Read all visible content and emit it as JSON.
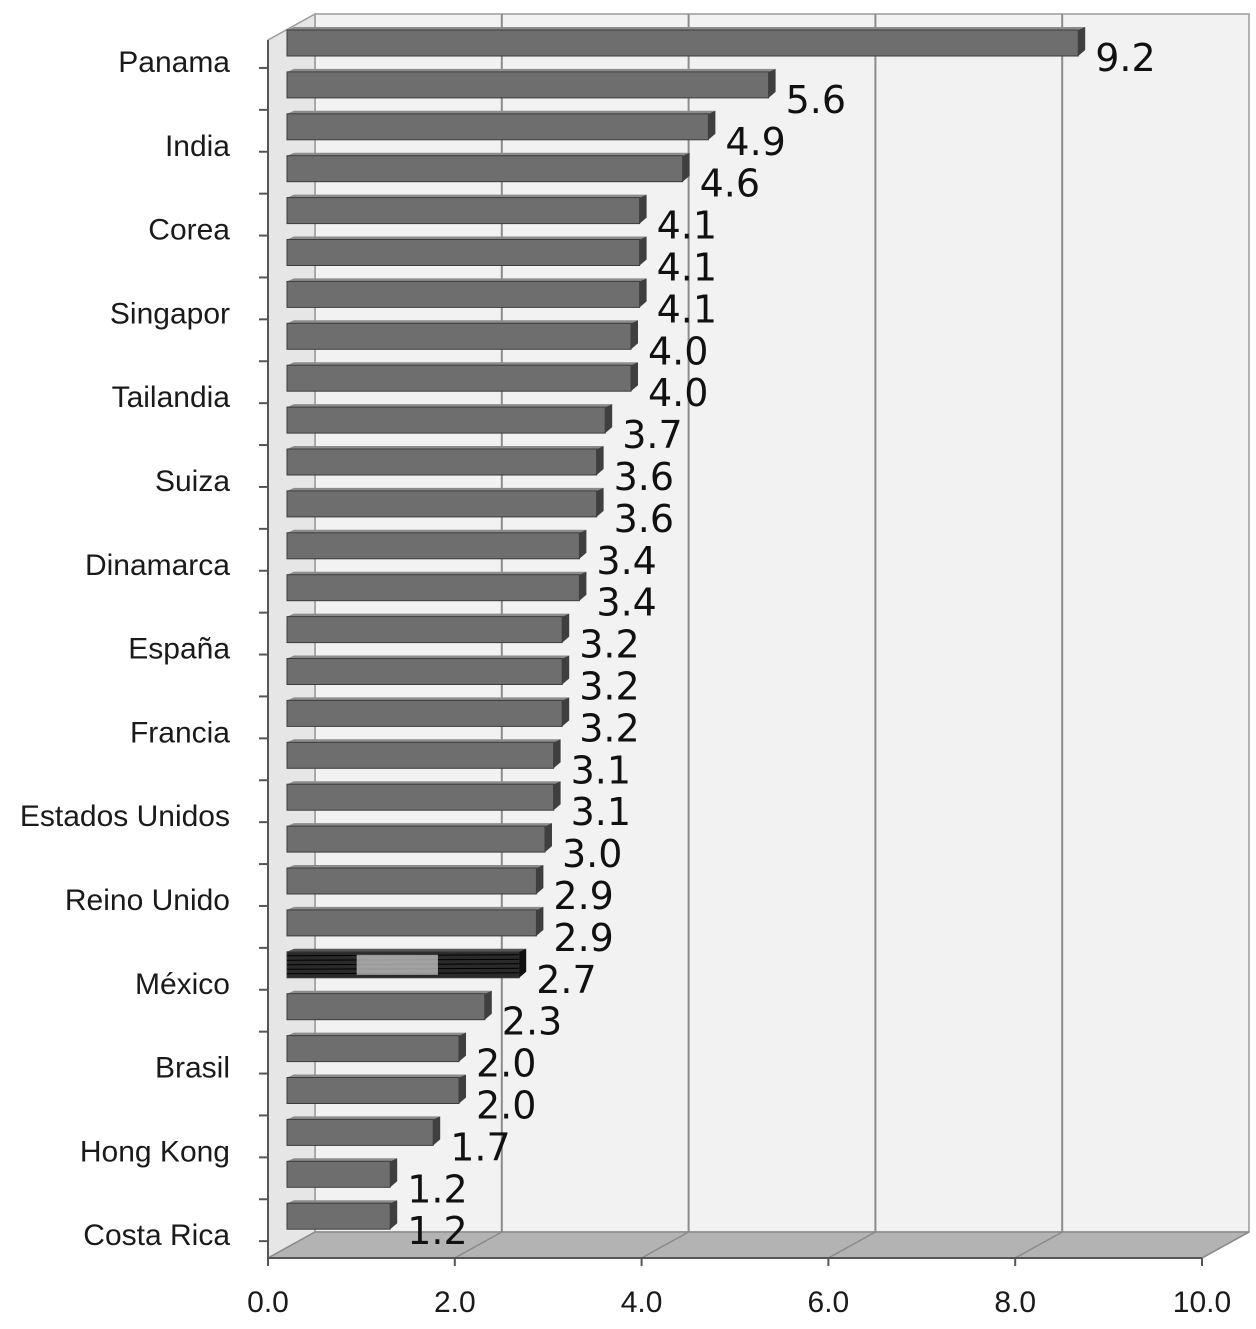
{
  "chart_data": {
    "type": "bar",
    "orientation": "horizontal",
    "title": "",
    "xlabel": "",
    "ylabel": "",
    "xlim": [
      0,
      10
    ],
    "x_ticks": [
      "0.0",
      "2.0",
      "4.0",
      "6.0",
      "8.0",
      "10.0"
    ],
    "grid": true,
    "categories": [
      "Panama",
      "",
      "India",
      "",
      "Corea",
      "",
      "Singapor",
      "",
      "Tailandia",
      "",
      "Suiza",
      "",
      "Dinamarca",
      "",
      "España",
      "",
      "Francia",
      "",
      "Estados Unidos",
      "",
      "Reino Unido",
      "",
      "México",
      "",
      "Brasil",
      "",
      "Hong Kong",
      "",
      "Costa Rica"
    ],
    "values": [
      9.2,
      5.6,
      4.9,
      4.6,
      4.1,
      4.1,
      4.1,
      4.0,
      4.0,
      3.7,
      3.6,
      3.6,
      3.4,
      3.4,
      3.2,
      3.2,
      3.2,
      3.1,
      3.1,
      3.0,
      2.9,
      2.9,
      2.7,
      2.3,
      2.0,
      2.0,
      1.7,
      1.2,
      1.2
    ],
    "value_labels": [
      "9.2",
      "5.6",
      "4.9",
      "4.6",
      "4.1",
      "4.1",
      "4.1",
      "4.0",
      "4.0",
      "3.7",
      "3.6",
      "3.6",
      "3.4",
      "3.4",
      "3.2",
      "3.2",
      "3.2",
      "3.1",
      "3.1",
      "3.0",
      "2.9",
      "2.9",
      "2.7",
      "2.3",
      "2.0",
      "2.0",
      "1.7",
      "1.2",
      "1.2"
    ],
    "highlight_category": "México",
    "colors": {
      "bar": "#6e6e6e",
      "bar_edge": "#3c3c3c",
      "highlight": "#2a2a2a",
      "wall": "#f2f2f2",
      "floor": "#b3b3b3",
      "grid": "#8c8c8c"
    }
  }
}
